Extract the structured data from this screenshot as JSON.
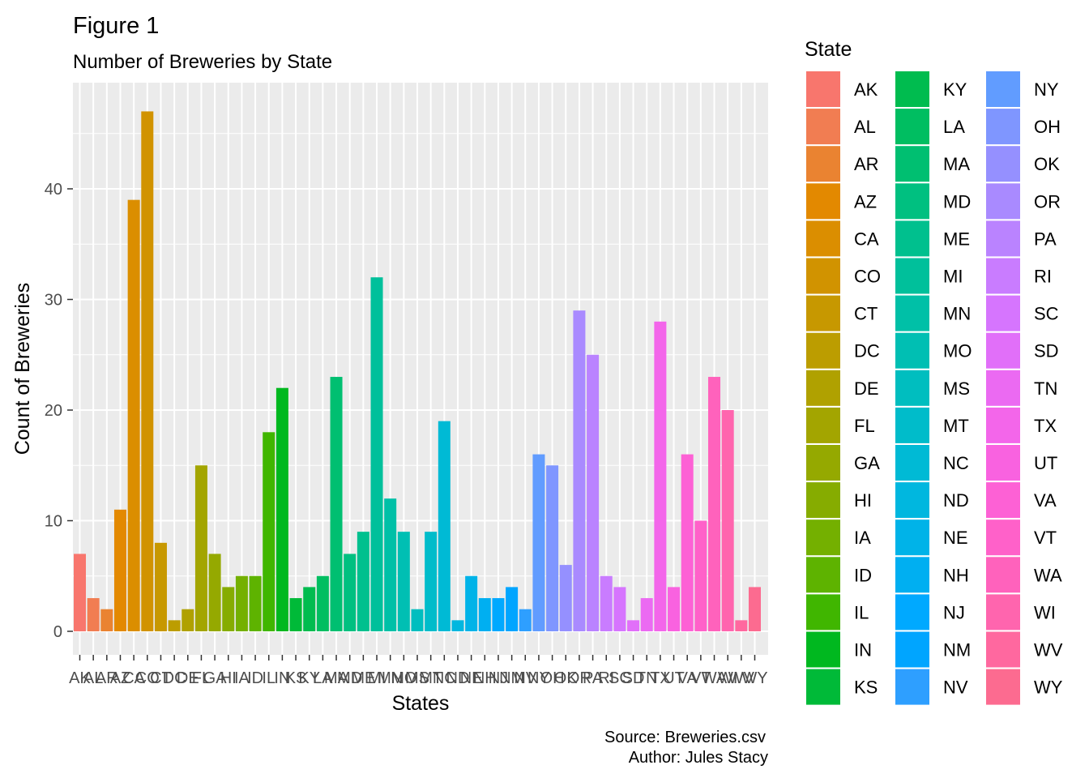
{
  "chart_data": {
    "type": "bar",
    "title": "Figure 1",
    "subtitle": "Number of Breweries by State",
    "xlabel": "States",
    "ylabel": "Count of Breweries",
    "ylim": [
      0,
      48
    ],
    "y_ticks": [
      0,
      10,
      20,
      30,
      40
    ],
    "grid": true,
    "legend_title": "State",
    "legend_placement": "right",
    "caption_lines": [
      "Source: Breweries.csv",
      "Author: Jules Stacy"
    ],
    "categories": [
      "AK",
      "AL",
      "AR",
      "AZ",
      "CA",
      "CO",
      "CT",
      "DC",
      "DE",
      "FL",
      "GA",
      "HI",
      "IA",
      "ID",
      "IL",
      "IN",
      "KS",
      "KY",
      "LA",
      "MA",
      "MD",
      "ME",
      "MI",
      "MN",
      "MO",
      "MS",
      "MT",
      "NC",
      "ND",
      "NE",
      "NH",
      "NJ",
      "NM",
      "NV",
      "NY",
      "OH",
      "OK",
      "OR",
      "PA",
      "RI",
      "SC",
      "SD",
      "TN",
      "TX",
      "UT",
      "VA",
      "VT",
      "WA",
      "WI",
      "WV",
      "WY"
    ],
    "values": [
      7,
      3,
      2,
      11,
      39,
      47,
      8,
      1,
      2,
      15,
      7,
      4,
      5,
      5,
      18,
      22,
      3,
      4,
      5,
      23,
      7,
      9,
      32,
      12,
      9,
      2,
      9,
      19,
      1,
      5,
      3,
      3,
      4,
      2,
      16,
      15,
      6,
      29,
      25,
      5,
      4,
      1,
      3,
      28,
      4,
      16,
      10,
      23,
      20,
      1,
      4
    ],
    "colors": [
      "#F8766D",
      "#F17D52",
      "#EA8331",
      "#E38900",
      "#DB8E00",
      "#D19300",
      "#C79800",
      "#BC9D00",
      "#B0A100",
      "#A3A500",
      "#95A900",
      "#86AC00",
      "#74B000",
      "#5EB300",
      "#40B600",
      "#00B81F",
      "#00BA38",
      "#00BC4F",
      "#00BE61",
      "#00BF71",
      "#00C080",
      "#00C08E",
      "#00C09B",
      "#00C0A7",
      "#00BFB3",
      "#00BEBF",
      "#00BCCA",
      "#00BAD5",
      "#00B7DF",
      "#00B3E8",
      "#00AFF1",
      "#00A9FF",
      "#00A5FF",
      "#2E9FFF",
      "#619CFF",
      "#7F96FF",
      "#9590FF",
      "#A98AFF",
      "#BA83FF",
      "#C97CFF",
      "#D675FE",
      "#E16FF9",
      "#EB6AF2",
      "#F366EA",
      "#F962E0",
      "#FD61D5",
      "#FF61C9",
      "#FF62BC",
      "#FF65AE",
      "#FF689F",
      "#FC6B90"
    ]
  }
}
